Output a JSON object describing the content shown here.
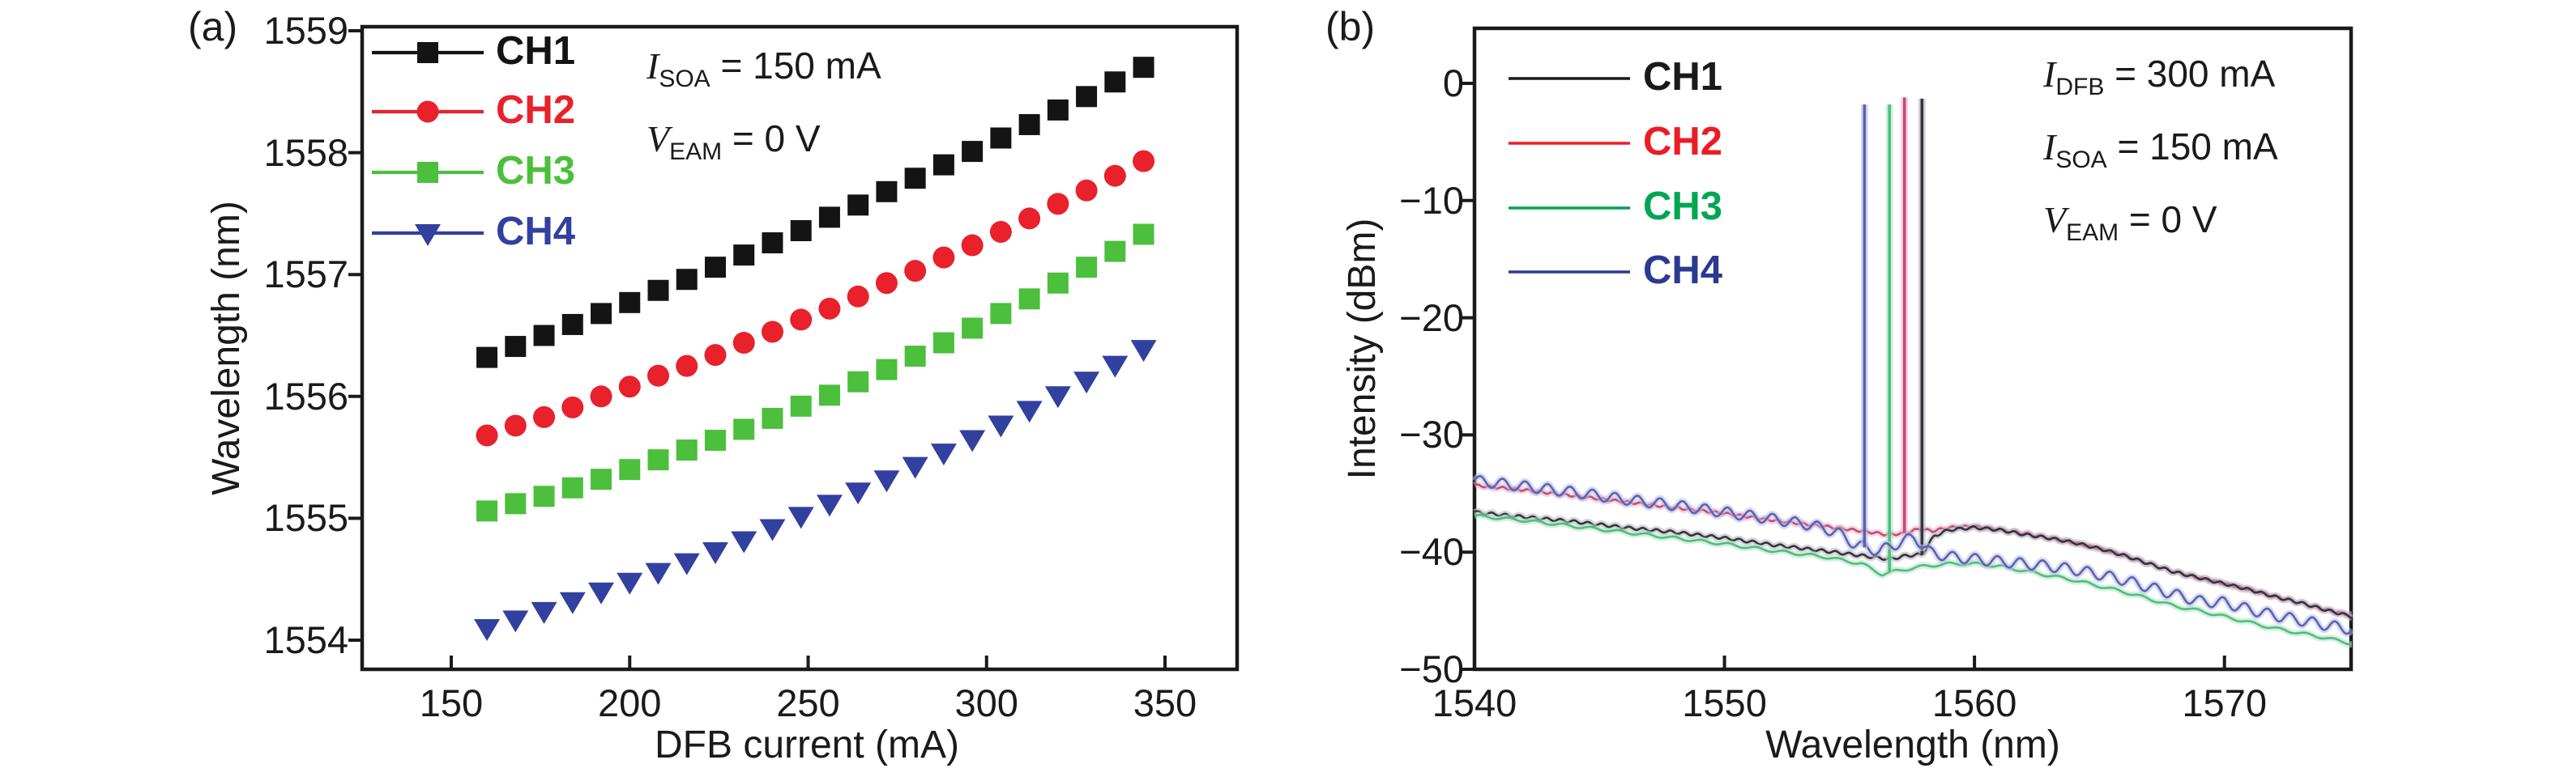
{
  "figure": {
    "background": "#ffffff",
    "panels": [
      {
        "letter": "(a)",
        "x_axis": {
          "label": "DFB current (mA)",
          "tick_labels": [
            "150",
            "200",
            "250",
            "300",
            "350"
          ]
        },
        "y_axis": {
          "label": "Wavelength (nm)",
          "tick_labels": [
            "1559",
            "1558",
            "1557",
            "1556",
            "1555",
            "1554"
          ]
        },
        "legend": [
          "CH1",
          "CH2",
          "CH3",
          "CH4"
        ],
        "annotations": [
          {
            "variable": "I",
            "subscript": "SOA",
            "rest": " = 150 mA"
          },
          {
            "variable": "V",
            "subscript": "EAM",
            "rest": " = 0 V"
          }
        ]
      },
      {
        "letter": "(b)",
        "x_axis": {
          "label": "Wavelength (nm)",
          "tick_labels": [
            "1540",
            "1550",
            "1560",
            "1570"
          ]
        },
        "y_axis": {
          "label": "Intensity (dBm)",
          "tick_labels": [
            "0",
            "−10",
            "−20",
            "−30",
            "−40",
            "−50"
          ]
        },
        "legend": [
          "CH1",
          "CH2",
          "CH3",
          "CH4"
        ],
        "annotations": [
          {
            "variable": "I",
            "subscript": "DFB",
            "rest": " = 300 mA"
          },
          {
            "variable": "I",
            "subscript": "SOA",
            "rest": " = 150 mA"
          },
          {
            "variable": "V",
            "subscript": "EAM",
            "rest": " = 0 V"
          }
        ]
      }
    ]
  },
  "chart_data": [
    {
      "type": "scatter",
      "title": "Lasing wavelength vs DFB current",
      "xlabel": "DFB current (mA)",
      "ylabel": "Wavelength (nm)",
      "xlim": [
        125,
        371
      ],
      "ylim": [
        1553.78,
        1559.03
      ],
      "xticks": [
        150,
        200,
        250,
        300,
        350
      ],
      "yticks": [
        1559,
        1558,
        1557,
        1556,
        1555,
        1554
      ],
      "grid": false,
      "legend_position": "top-left",
      "x_mA": [
        160,
        168,
        176,
        184,
        192,
        200,
        208,
        216,
        224,
        232,
        240,
        248,
        256,
        264,
        272,
        280,
        288,
        296,
        304,
        312,
        320,
        328,
        336,
        344
      ],
      "series": [
        {
          "name": "CH1",
          "marker": "square",
          "color": "#141414",
          "values": [
            1556.32,
            1556.41,
            1556.5,
            1556.59,
            1556.68,
            1556.77,
            1556.87,
            1556.96,
            1557.06,
            1557.16,
            1557.26,
            1557.36,
            1557.47,
            1557.57,
            1557.68,
            1557.79,
            1557.9,
            1558.01,
            1558.12,
            1558.23,
            1558.35,
            1558.46,
            1558.58,
            1558.7
          ]
        },
        {
          "name": "CH2",
          "marker": "circle",
          "color": "#e8212b",
          "values": [
            1555.68,
            1555.76,
            1555.83,
            1555.91,
            1556.0,
            1556.08,
            1556.17,
            1556.25,
            1556.34,
            1556.44,
            1556.53,
            1556.63,
            1556.72,
            1556.82,
            1556.93,
            1557.03,
            1557.14,
            1557.24,
            1557.35,
            1557.46,
            1557.58,
            1557.69,
            1557.81,
            1557.93
          ]
        },
        {
          "name": "CH3",
          "marker": "square",
          "color": "#4cbf3c",
          "values": [
            1555.06,
            1555.12,
            1555.18,
            1555.25,
            1555.32,
            1555.4,
            1555.48,
            1555.56,
            1555.64,
            1555.73,
            1555.82,
            1555.92,
            1556.01,
            1556.12,
            1556.22,
            1556.33,
            1556.44,
            1556.56,
            1556.68,
            1556.8,
            1556.93,
            1557.06,
            1557.19,
            1557.33
          ]
        },
        {
          "name": "CH4",
          "marker": "triangle-down",
          "color": "#32409f",
          "values": [
            1554.1,
            1554.17,
            1554.24,
            1554.32,
            1554.4,
            1554.48,
            1554.56,
            1554.64,
            1554.73,
            1554.82,
            1554.92,
            1555.02,
            1555.12,
            1555.22,
            1555.32,
            1555.43,
            1555.54,
            1555.65,
            1555.77,
            1555.89,
            1556.01,
            1556.13,
            1556.26,
            1556.39
          ]
        }
      ],
      "annotations": [
        "I_SOA = 150 mA",
        "V_EAM = 0 V"
      ]
    },
    {
      "type": "line",
      "title": "Lasing spectra of the four channels",
      "xlabel": "Wavelength (nm)",
      "ylabel": "Intensity (dBm)",
      "xlim": [
        1540,
        1575.1
      ],
      "ylim": [
        -50,
        4.7
      ],
      "xticks": [
        1540,
        1550,
        1560,
        1570
      ],
      "yticks": [
        0,
        -10,
        -20,
        -30,
        -40,
        -50
      ],
      "grid": false,
      "legend_position": "top-left",
      "series": [
        {
          "name": "CH1",
          "color": "#34343c",
          "halo": "#b4b4c0",
          "legend_color": "#1a1a1a",
          "peak_nm": 1557.9,
          "peak_dbm": -1.3,
          "ripple_db": 0.12,
          "ripple_period_nm": 0.55,
          "baseline": [
            [
              1540,
              -36.6
            ],
            [
              1542,
              -37.0
            ],
            [
              1544,
              -37.4
            ],
            [
              1546,
              -37.9
            ],
            [
              1548,
              -38.3
            ],
            [
              1550,
              -38.8
            ],
            [
              1552,
              -39.4
            ],
            [
              1554,
              -39.9
            ],
            [
              1555.5,
              -40.3
            ],
            [
              1556.6,
              -40.6
            ],
            [
              1557.3,
              -40.3
            ],
            [
              1557.9,
              -40.2
            ],
            [
              1558.4,
              -38.6
            ],
            [
              1559,
              -38.1
            ],
            [
              1560,
              -37.9
            ],
            [
              1561,
              -38.1
            ],
            [
              1562,
              -38.5
            ],
            [
              1563,
              -38.8
            ],
            [
              1564,
              -39.2
            ],
            [
              1565,
              -39.7
            ],
            [
              1566,
              -40.3
            ],
            [
              1567,
              -41.0
            ],
            [
              1568,
              -41.7
            ],
            [
              1569,
              -42.2
            ],
            [
              1570,
              -42.7
            ],
            [
              1571,
              -43.2
            ],
            [
              1572,
              -43.8
            ],
            [
              1573,
              -44.3
            ],
            [
              1574,
              -44.9
            ],
            [
              1575.1,
              -45.5
            ]
          ]
        },
        {
          "name": "CH2",
          "color": "#c64a78",
          "halo": "#edb7cb",
          "legend_color": "#ed1c24",
          "peak_nm": 1557.2,
          "peak_dbm": -1.2,
          "ripple_db": 0.1,
          "ripple_period_nm": 0.5,
          "baseline": [
            [
              1540,
              -34.3
            ],
            [
              1542,
              -34.7
            ],
            [
              1544,
              -35.2
            ],
            [
              1546,
              -35.7
            ],
            [
              1548,
              -36.2
            ],
            [
              1550,
              -36.7
            ],
            [
              1552,
              -37.3
            ],
            [
              1554,
              -37.8
            ],
            [
              1555.5,
              -38.2
            ],
            [
              1556.5,
              -38.5
            ],
            [
              1557.2,
              -38.4
            ],
            [
              1557.8,
              -38.0
            ],
            [
              1558.3,
              -38.2
            ],
            [
              1559,
              -37.9
            ],
            [
              1560,
              -37.8
            ],
            [
              1561,
              -38.1
            ],
            [
              1562,
              -38.4
            ],
            [
              1563,
              -38.8
            ],
            [
              1564,
              -39.2
            ],
            [
              1565,
              -39.7
            ],
            [
              1566,
              -40.3
            ],
            [
              1567,
              -41.0
            ],
            [
              1568,
              -41.7
            ],
            [
              1569,
              -42.2
            ],
            [
              1570,
              -42.7
            ],
            [
              1571,
              -43.2
            ],
            [
              1572,
              -43.8
            ],
            [
              1573,
              -44.3
            ],
            [
              1574,
              -44.9
            ],
            [
              1575.1,
              -45.4
            ]
          ]
        },
        {
          "name": "CH3",
          "color": "#4fbd7e",
          "halo": "#b2e3c2",
          "legend_color": "#00a651",
          "peak_nm": 1556.6,
          "peak_dbm": -1.8,
          "ripple_db": 0.12,
          "ripple_period_nm": 1.1,
          "baseline": [
            [
              1540,
              -36.9
            ],
            [
              1542,
              -37.3
            ],
            [
              1544,
              -37.8
            ],
            [
              1546,
              -38.3
            ],
            [
              1548,
              -38.8
            ],
            [
              1550,
              -39.3
            ],
            [
              1552,
              -39.9
            ],
            [
              1554,
              -40.4
            ],
            [
              1555.5,
              -41.0
            ],
            [
              1556.3,
              -41.9
            ],
            [
              1556.9,
              -41.6
            ],
            [
              1558,
              -41.2
            ],
            [
              1559,
              -41.0
            ],
            [
              1560,
              -41.0
            ],
            [
              1561,
              -41.2
            ],
            [
              1562,
              -41.6
            ],
            [
              1563,
              -42.0
            ],
            [
              1564,
              -42.4
            ],
            [
              1565,
              -42.9
            ],
            [
              1566,
              -43.4
            ],
            [
              1567,
              -44.0
            ],
            [
              1568,
              -44.6
            ],
            [
              1569,
              -45.0
            ],
            [
              1570,
              -45.5
            ],
            [
              1571,
              -46.0
            ],
            [
              1572,
              -46.5
            ],
            [
              1573,
              -46.9
            ],
            [
              1574,
              -47.3
            ],
            [
              1575.1,
              -47.8
            ]
          ]
        },
        {
          "name": "CH4",
          "color": "#5a62b4",
          "halo": "#bcc1e2",
          "legend_color": "#2b3990",
          "peak_nm": 1555.6,
          "peak_dbm": -1.8,
          "ripple_db": 0.45,
          "ripple_period_nm": 0.9,
          "baseline": [
            [
              1540,
              -33.9
            ],
            [
              1542,
              -34.4
            ],
            [
              1544,
              -34.9
            ],
            [
              1546,
              -35.5
            ],
            [
              1548,
              -36.0
            ],
            [
              1550,
              -36.6
            ],
            [
              1552,
              -37.2
            ],
            [
              1553.5,
              -37.7
            ],
            [
              1554.5,
              -38.3
            ],
            [
              1555.2,
              -39.3
            ],
            [
              1555.6,
              -39.6
            ],
            [
              1556.2,
              -39.9
            ],
            [
              1557,
              -39.2
            ],
            [
              1557.6,
              -38.7
            ],
            [
              1558.2,
              -40.0
            ],
            [
              1559,
              -40.4
            ],
            [
              1560,
              -40.6
            ],
            [
              1561,
              -40.8
            ],
            [
              1562,
              -41.0
            ],
            [
              1563,
              -41.2
            ],
            [
              1564,
              -41.5
            ],
            [
              1565,
              -41.9
            ],
            [
              1566,
              -42.4
            ],
            [
              1567,
              -43.0
            ],
            [
              1568,
              -43.6
            ],
            [
              1569,
              -44.2
            ],
            [
              1570,
              -44.3
            ],
            [
              1571,
              -44.9
            ],
            [
              1572,
              -45.4
            ],
            [
              1573,
              -45.8
            ],
            [
              1574,
              -46.2
            ],
            [
              1575.1,
              -46.6
            ]
          ]
        }
      ],
      "annotations": [
        "I_DFB = 300 mA",
        "I_SOA = 150 mA",
        "V_EAM = 0 V"
      ]
    }
  ]
}
